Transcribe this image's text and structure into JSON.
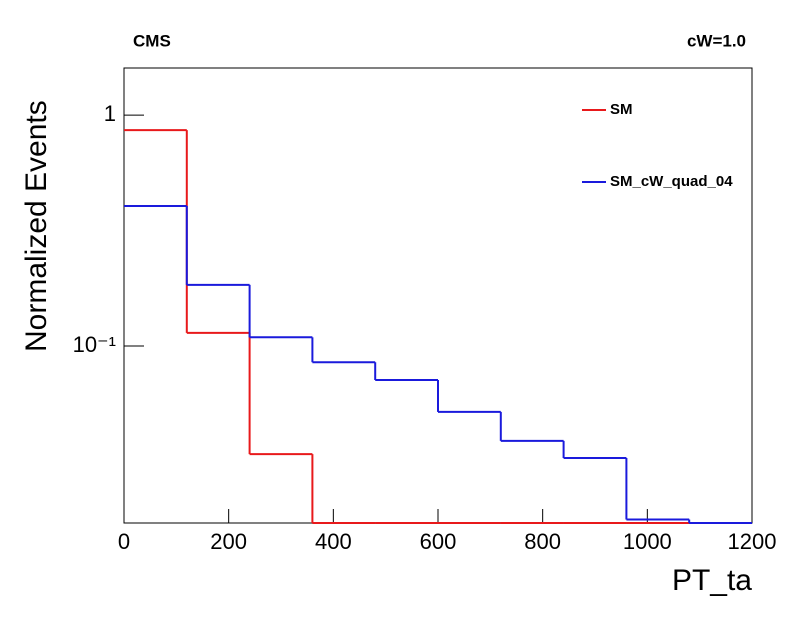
{
  "chart_data": {
    "type": "histogram",
    "title": "CMS",
    "subtitle": "cW=1.0",
    "x_label": "PT_ta",
    "y_label": "Normalized Events",
    "bins": [
      0,
      120,
      240,
      360,
      480,
      600,
      720,
      840,
      960,
      1080,
      1200
    ],
    "series": [
      {
        "name": "SM",
        "color": "#e8191b",
        "values": [
          0.861,
          0.114,
          0.034,
          0,
          0,
          0,
          0,
          0,
          0,
          0
        ]
      },
      {
        "name": "SM_cW_quad_04",
        "color": "#1a1adc",
        "values": [
          0.404,
          0.184,
          0.109,
          0.085,
          0.0712,
          0.0518,
          0.0388,
          0.0327,
          0.0177,
          0
        ]
      }
    ],
    "xlim": [
      0,
      1200
    ],
    "xticks": [
      0,
      200,
      400,
      600,
      800,
      1000,
      1200
    ],
    "ylim": [
      0.0171,
      1.6
    ],
    "yticks": [
      {
        "value": 0.1,
        "label": "10⁻¹"
      },
      1
    ],
    "log_y": true,
    "grid": false,
    "legend": "top-right"
  }
}
